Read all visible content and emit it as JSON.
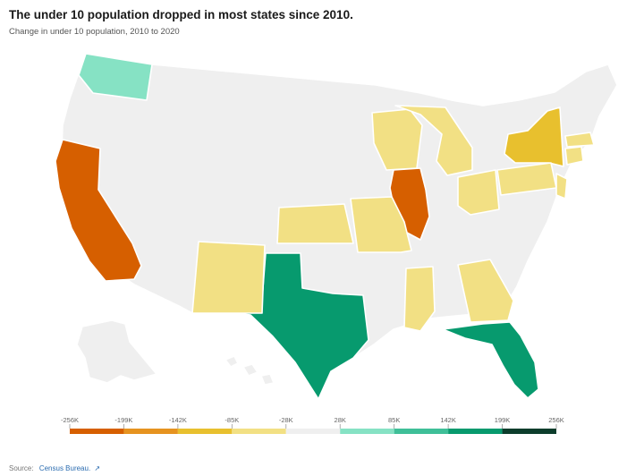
{
  "title": "The under 10 population dropped in most states since 2010.",
  "subtitle": "Change in under 10 population, 2010 to 2020",
  "source_label": "Source:",
  "source_link": "Census Bureau.",
  "legend": {
    "ticks": [
      "-256K",
      "-199K",
      "-142K",
      "-85K",
      "-28K",
      "28K",
      "85K",
      "142K",
      "199K",
      "256K"
    ],
    "colors": [
      "#d65f00",
      "#e69320",
      "#e8c02e",
      "#f2e084",
      "#efefef",
      "#86e2c4",
      "#3fbf98",
      "#079a6e",
      "#0c3d2c"
    ]
  },
  "colors": {
    "neutral": "#efefef",
    "strong_decline": "#d65f00",
    "moderate_decline": "#e8c02e",
    "mild_decline": "#f2e084",
    "mild_increase": "#86e2c4",
    "strong_increase": "#079a6e"
  },
  "states": [
    {
      "name": "Washington",
      "band": "28K to 85K",
      "color": "#86e2c4"
    },
    {
      "name": "California",
      "band": "-256K to -199K",
      "color": "#d65f00"
    },
    {
      "name": "Illinois",
      "band": "-256K to -199K",
      "color": "#d65f00"
    },
    {
      "name": "New York",
      "band": "-142K to -85K",
      "color": "#e8c02e"
    },
    {
      "name": "Texas",
      "band": "142K to 199K",
      "color": "#079a6e"
    },
    {
      "name": "Florida",
      "band": "142K to 199K",
      "color": "#079a6e"
    },
    {
      "name": "New Mexico",
      "band": "-85K to -28K",
      "color": "#f2e084"
    },
    {
      "name": "Kansas",
      "band": "-85K to -28K",
      "color": "#f2e084"
    },
    {
      "name": "Missouri",
      "band": "-85K to -28K",
      "color": "#f2e084"
    },
    {
      "name": "Wisconsin",
      "band": "-85K to -28K",
      "color": "#f2e084"
    },
    {
      "name": "Michigan",
      "band": "-85K to -28K",
      "color": "#f2e084"
    },
    {
      "name": "Ohio",
      "band": "-85K to -28K",
      "color": "#f2e084"
    },
    {
      "name": "Pennsylvania",
      "band": "-85K to -28K",
      "color": "#f2e084"
    },
    {
      "name": "New Jersey",
      "band": "-85K to -28K",
      "color": "#f2e084"
    },
    {
      "name": "Connecticut",
      "band": "-85K to -28K",
      "color": "#f2e084"
    },
    {
      "name": "Massachusetts",
      "band": "-85K to -28K",
      "color": "#f2e084"
    },
    {
      "name": "Mississippi",
      "band": "-85K to -28K",
      "color": "#f2e084"
    },
    {
      "name": "Georgia",
      "band": "-85K to -28K",
      "color": "#f2e084"
    }
  ]
}
